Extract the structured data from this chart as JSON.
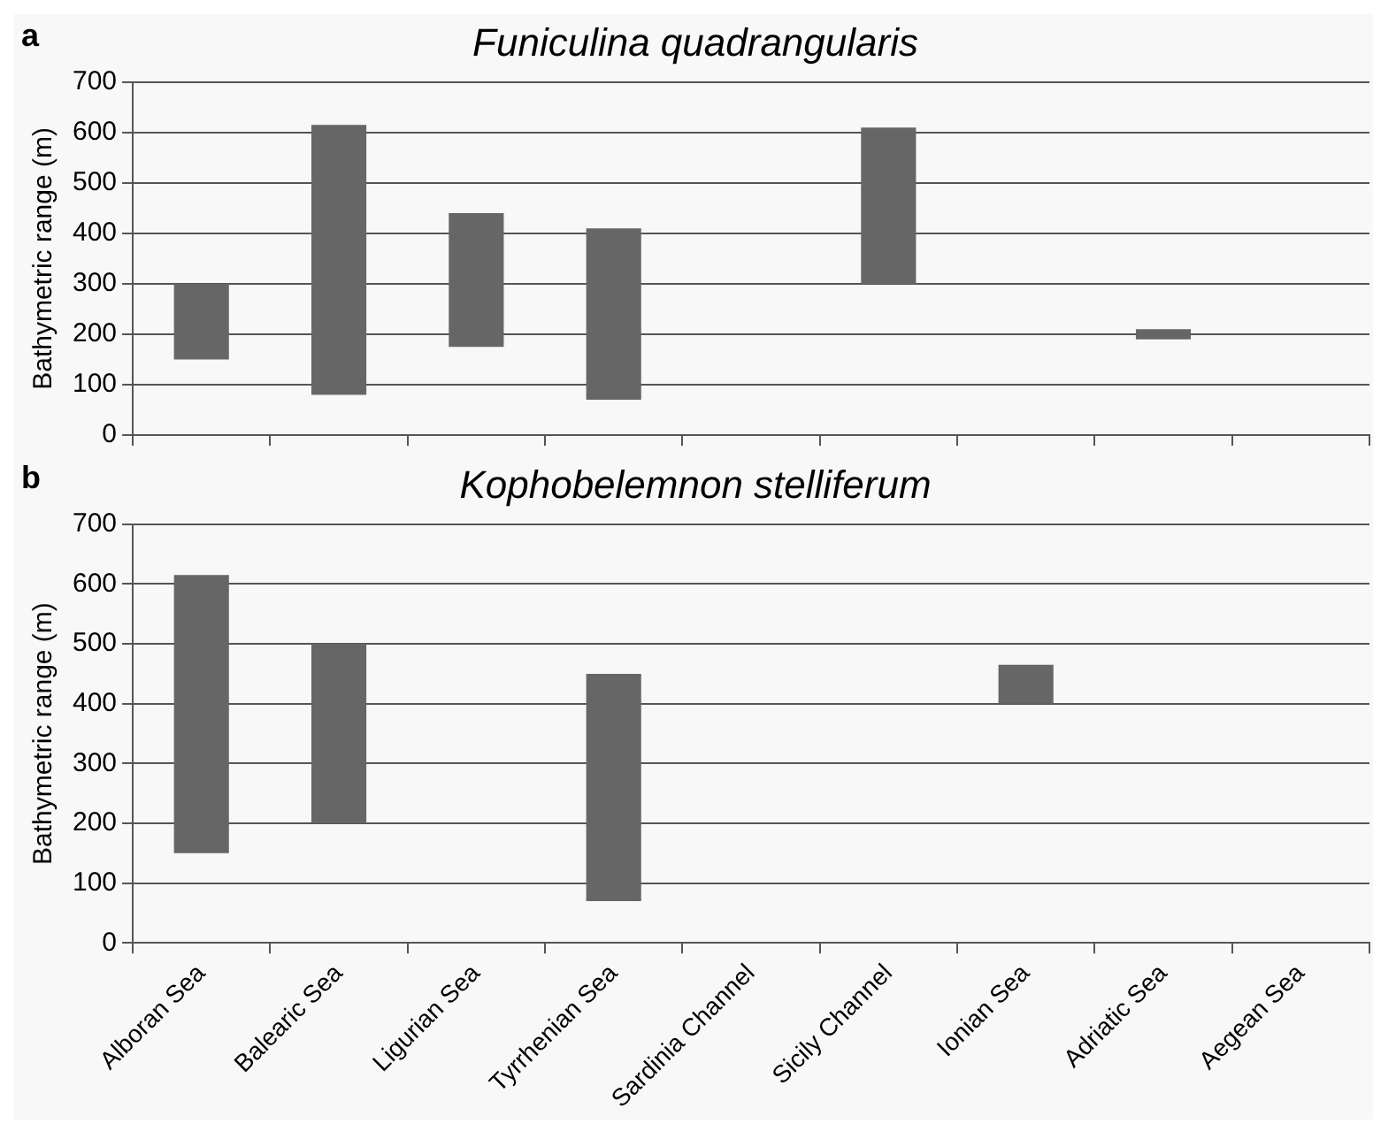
{
  "chart_data": [
    {
      "type": "bar",
      "title": "Funiculina quadrangularis",
      "ylabel": "Bathymetric range (m)",
      "annotations": [
        "a"
      ],
      "categories": [
        null,
        null,
        null,
        null,
        null,
        null,
        null,
        null,
        null
      ],
      "base": [
        150,
        80,
        175,
        70,
        null,
        300,
        null,
        190,
        null
      ],
      "values": [
        150,
        535,
        265,
        340,
        null,
        310,
        null,
        20,
        null
      ],
      "color": "#666666",
      "ylim": [
        0,
        700
      ],
      "yticks": [
        0,
        100,
        200,
        300,
        400,
        500,
        600,
        700
      ],
      "grid": "y",
      "legend": false,
      "tick_labels": "y"
    },
    {
      "type": "bar",
      "title": "Kophobelemnon stelliferum",
      "ylabel": "Bathymetric range (m)",
      "annotations": [
        "b"
      ],
      "categories": [
        "Alboran Sea",
        "Balearic Sea",
        "Ligurian Sea",
        "Tyrrhenian Sea",
        "Sardinia Channel",
        "Sicily Channel",
        "Ionian Sea",
        "Adriatic Sea",
        "Aegean Sea"
      ],
      "base": [
        150,
        200,
        null,
        70,
        null,
        null,
        400,
        null,
        null
      ],
      "values": [
        465,
        300,
        null,
        380,
        null,
        null,
        65,
        null,
        null
      ],
      "color": "#666666",
      "ylim": [
        0,
        700
      ],
      "yticks": [
        0,
        100,
        200,
        300,
        400,
        500,
        600,
        700
      ],
      "grid": "y",
      "legend": false
    }
  ]
}
